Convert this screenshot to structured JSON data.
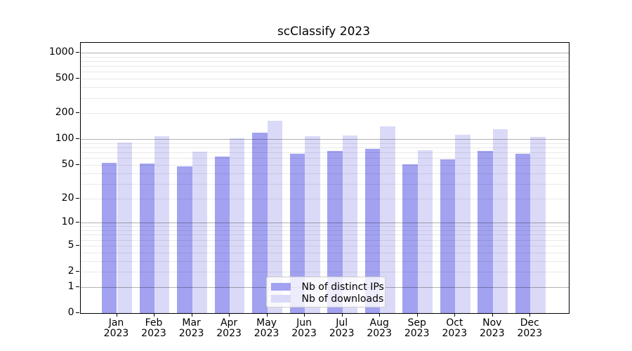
{
  "chart_data": {
    "type": "bar",
    "title": "scClassify 2023",
    "categories": [
      "Jan",
      "Feb",
      "Mar",
      "Apr",
      "May",
      "Jun",
      "Jul",
      "Aug",
      "Sep",
      "Oct",
      "Nov",
      "Dec"
    ],
    "category_year": "2023",
    "series": [
      {
        "name": "Nb of distinct IPs",
        "color": "#a2a2f1",
        "values": [
          53,
          52,
          48,
          63,
          120,
          68,
          73,
          77,
          51,
          58,
          73,
          68
        ]
      },
      {
        "name": "Nb of downloads",
        "color": "#dadaf8",
        "values": [
          92,
          109,
          72,
          103,
          165,
          108,
          111,
          140,
          74,
          113,
          131,
          107
        ]
      }
    ],
    "y_axis": {
      "scale": "log1p",
      "tick_labels": [
        "0",
        "1",
        "2",
        "5",
        "10",
        "20",
        "50",
        "100",
        "200",
        "500",
        "1000"
      ],
      "tick_values": [
        0,
        1,
        2,
        5,
        10,
        20,
        50,
        100,
        200,
        500,
        1000
      ],
      "major_gridlines": [
        1,
        10,
        100,
        1000
      ],
      "minor_gridlines": [
        2,
        3,
        4,
        5,
        6,
        7,
        8,
        9,
        20,
        30,
        40,
        50,
        60,
        70,
        80,
        90,
        200,
        300,
        400,
        500,
        600,
        700,
        800,
        900
      ],
      "ylim_top": 1300
    },
    "legend_position": "lower center",
    "grid": true,
    "colors": {
      "background": "#ffffff",
      "spine": "#000000",
      "text": "#000000",
      "major_grid": "rgba(0,0,0,0.30)",
      "minor_grid": "rgba(0,0,0,0.085)"
    }
  }
}
